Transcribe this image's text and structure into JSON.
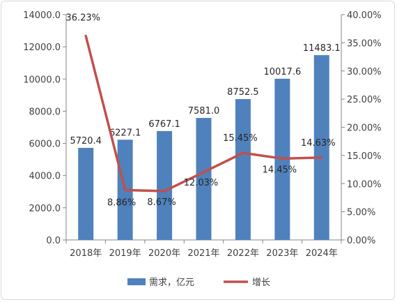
{
  "chart_data": {
    "type": "bar",
    "categories": [
      "2018年",
      "2019年",
      "2020年",
      "2021年",
      "2022年",
      "2023年",
      "2024年"
    ],
    "series": [
      {
        "name": "需求，亿元",
        "type": "bar",
        "axis": "left",
        "values": [
          5720.4,
          6227.1,
          6767.1,
          7581.0,
          8752.5,
          10017.6,
          11483.1
        ],
        "labels": [
          "5720.4",
          "6227.1",
          "6767.1",
          "7581.0",
          "8752.5",
          "10017.6",
          "11483.1"
        ],
        "color": "#4f81bd"
      },
      {
        "name": "增长",
        "type": "line",
        "axis": "right",
        "values": [
          36.23,
          8.86,
          8.67,
          12.03,
          15.45,
          14.45,
          14.63
        ],
        "labels": [
          "36.23%",
          "8.86%",
          "8.67%",
          "12.03%",
          "15.45%",
          "14.45%",
          "14.63%"
        ],
        "color": "#c0504d"
      }
    ],
    "y_left": {
      "lim": [
        0,
        14000
      ],
      "ticks": [
        "0.0",
        "2000.0",
        "4000.0",
        "6000.0",
        "8000.0",
        "10000.0",
        "12000.0",
        "14000.0"
      ]
    },
    "y_right": {
      "lim": [
        0,
        40
      ],
      "ticks": [
        "0.00%",
        "5.00%",
        "10.00%",
        "15.00%",
        "20.00%",
        "25.00%",
        "30.00%",
        "35.00%",
        "40.00%"
      ]
    },
    "grid": false,
    "legend": "bottom"
  }
}
